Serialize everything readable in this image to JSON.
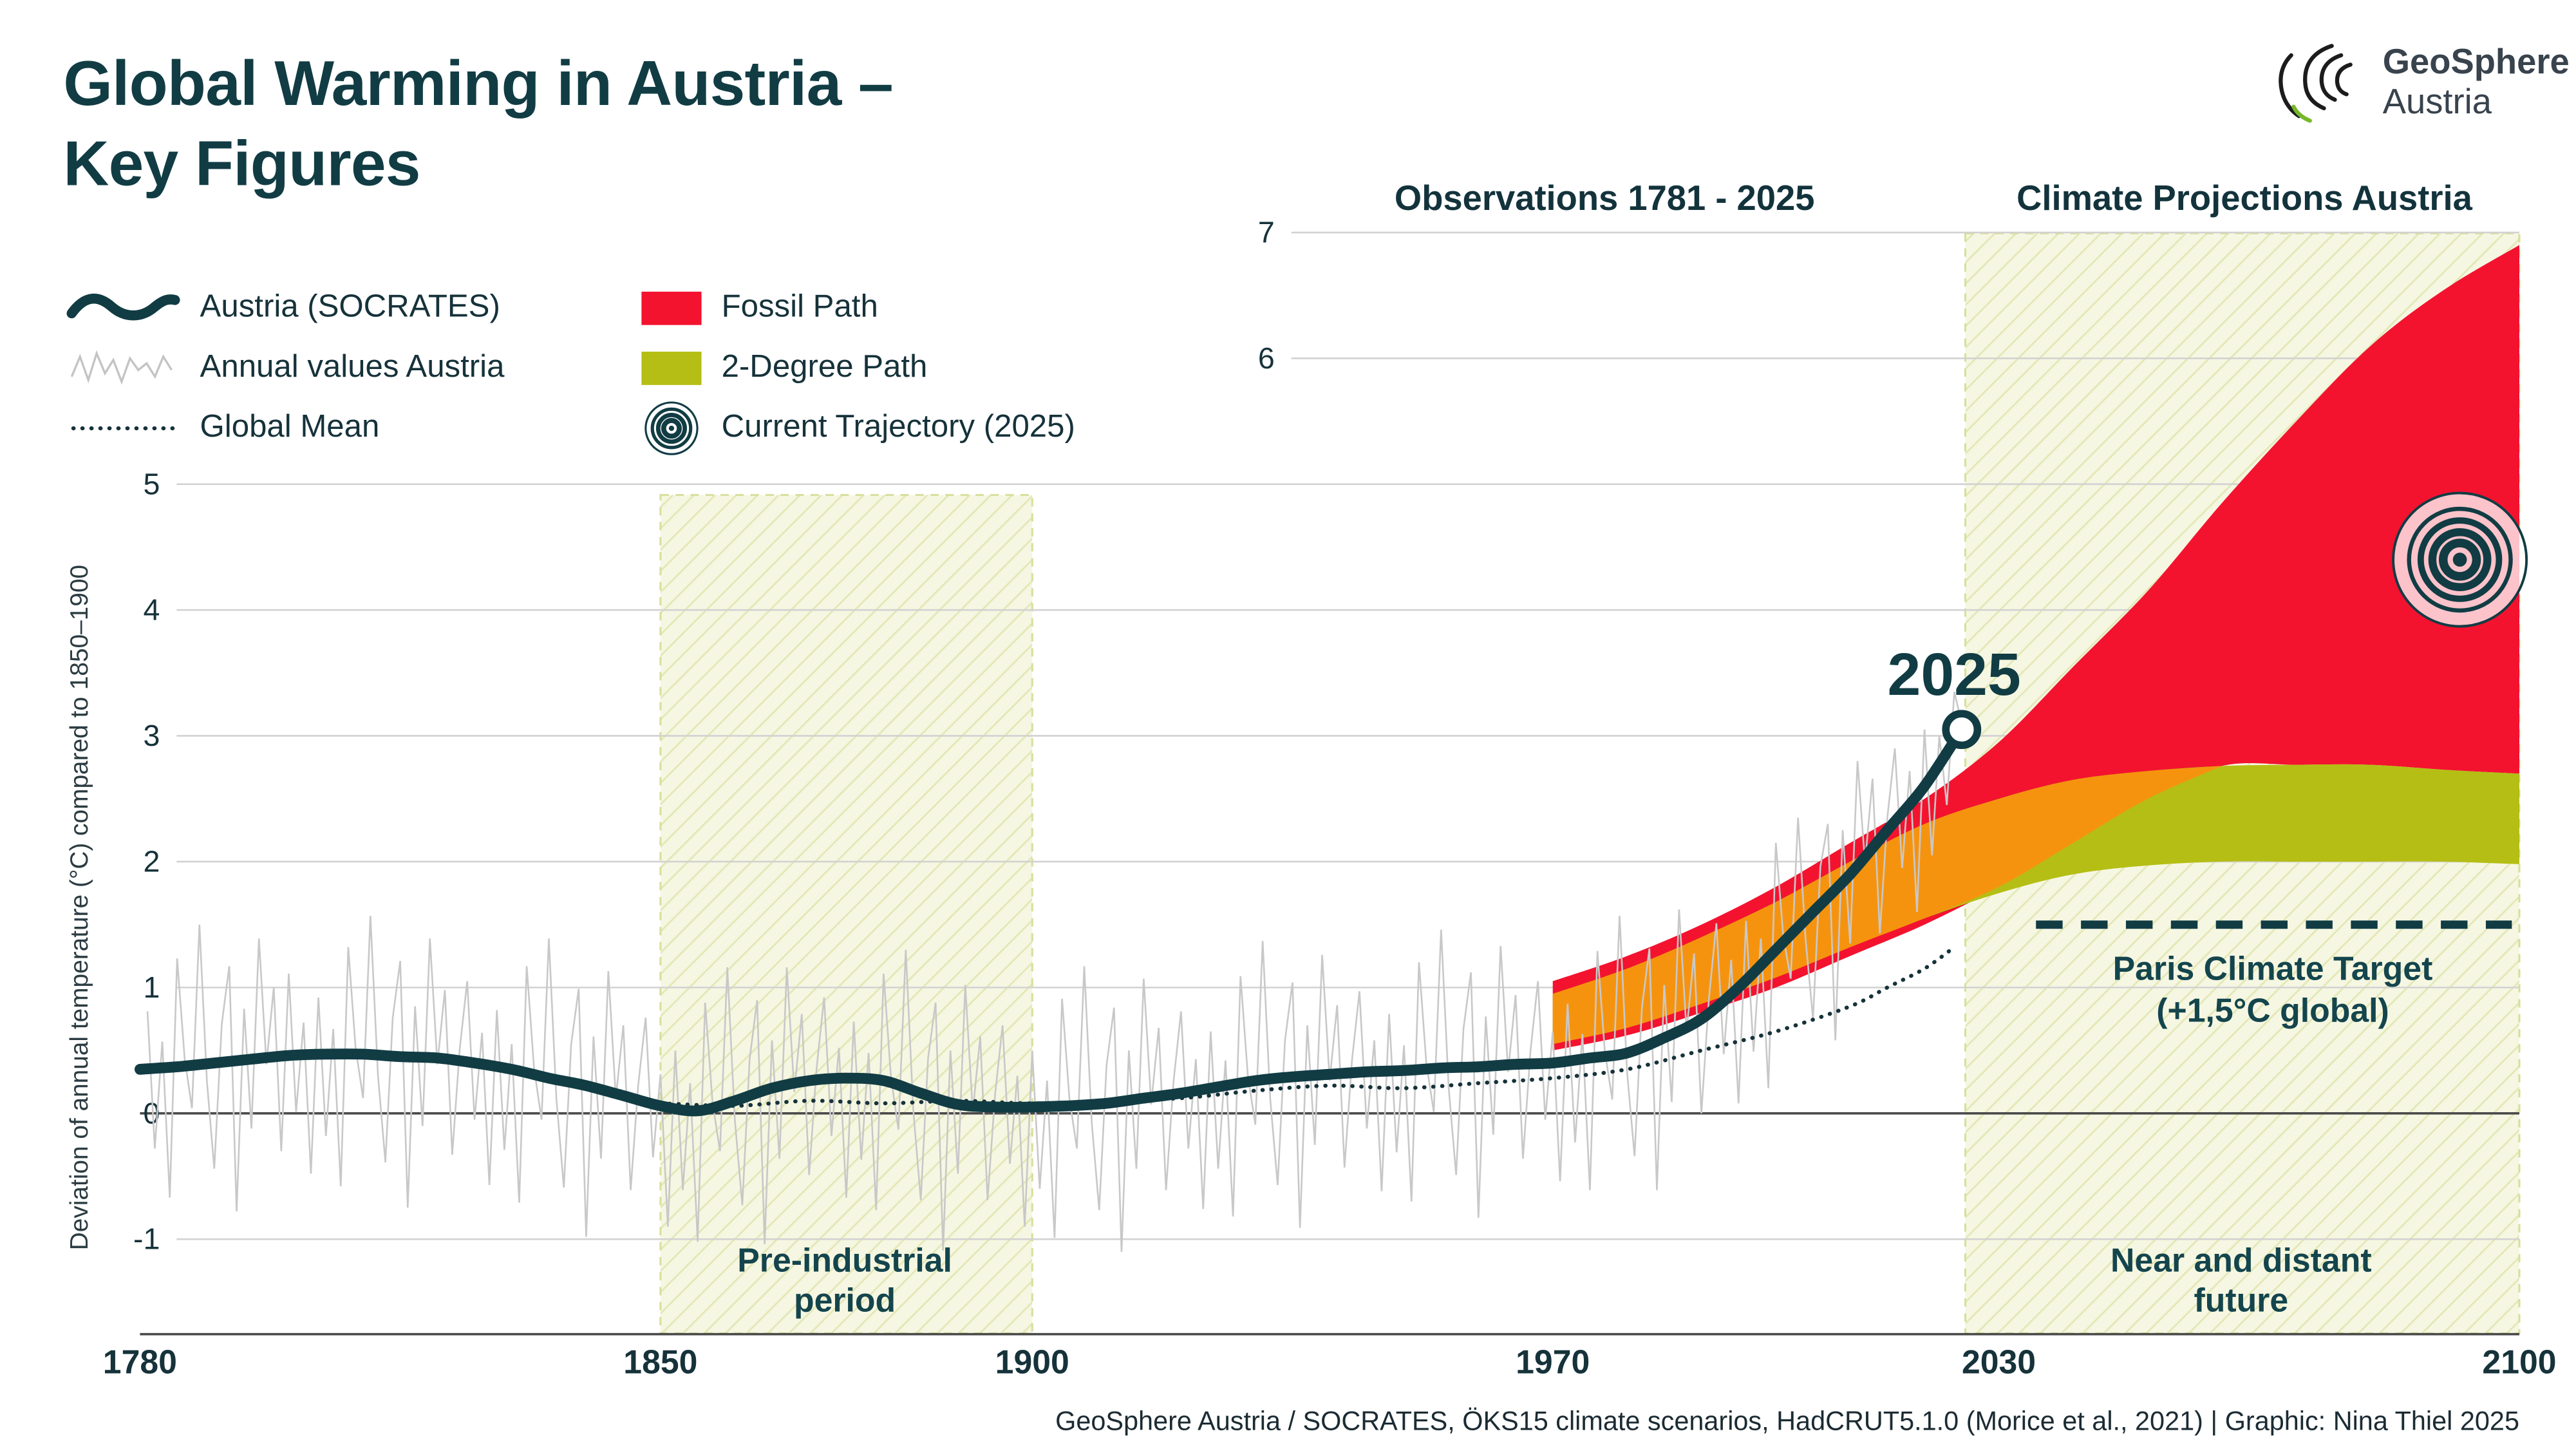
{
  "title": {
    "line1": "Global Warming in Austria –",
    "line2": "Key Figures"
  },
  "logo": {
    "name": "GeoSphere",
    "region": "Austria"
  },
  "legend": {
    "items": [
      {
        "id": "socrates",
        "label": "Austria (SOCRATES)"
      },
      {
        "id": "annual",
        "label": "Annual values Austria"
      },
      {
        "id": "global-mean",
        "label": "Global Mean"
      },
      {
        "id": "fossil",
        "label": "Fossil Path"
      },
      {
        "id": "two-degree",
        "label": "2-Degree Path"
      },
      {
        "id": "trajectory",
        "label": "Current Trajectory (2025)"
      }
    ]
  },
  "sections": {
    "observations": "Observations 1781 - 2025",
    "projections": "Climate Projections Austria"
  },
  "annotations": {
    "year_label": "2025",
    "paris_line1": "Paris Climate Target",
    "paris_line2": "(+1,5°C global)",
    "preindustrial_line1": "Pre-industrial",
    "preindustrial_line2": "period",
    "future_line1": "Near and distant",
    "future_line2": "future"
  },
  "footer": "GeoSphere Austria / SOCRATES, ÖKS15 climate scenarios, HadCRUT5.1.0 (Morice et al., 2021) | Graphic: Nina Thiel 2025",
  "colors": {
    "teal": "#113c44",
    "text": "#16323a",
    "red": "#f3132f",
    "olive": "#b5be14",
    "orange": "#f6930e",
    "grid": "#d2d2d2",
    "axis": "#4a4a4a",
    "annual": "#c8c8c8",
    "hatch_bg": "#f6f7e2",
    "hatch_line": "#e3e8b6",
    "band_edge": "#d8df9b",
    "logo_green": "#76b82a",
    "logo_ink": "#1c1c1c"
  },
  "chart_data": {
    "type": "line",
    "title": "Global Warming in Austria – Key Figures",
    "ylabel": "Deviation of annual temperature (°C) compared to 1850–1900",
    "xlim": [
      1780,
      2100
    ],
    "ylim": [
      -1.75,
      7
    ],
    "x_ticks": [
      1780,
      1850,
      1900,
      1970,
      2030,
      2100
    ],
    "y_ticks": [
      -1,
      0,
      1,
      2,
      3,
      4,
      5,
      6,
      7
    ],
    "grid": true,
    "regions": {
      "preindustrial": {
        "from": 1850,
        "to": 1900
      },
      "future": {
        "from": 2025.5,
        "to": 2100
      }
    },
    "series": {
      "socrates": {
        "name": "Austria (SOCRATES)",
        "years": [
          1780,
          1785,
          1790,
          1795,
          1800,
          1805,
          1810,
          1815,
          1820,
          1825,
          1830,
          1835,
          1840,
          1845,
          1850,
          1855,
          1860,
          1865,
          1870,
          1875,
          1880,
          1885,
          1890,
          1895,
          1900,
          1905,
          1910,
          1915,
          1920,
          1925,
          1930,
          1935,
          1940,
          1945,
          1950,
          1955,
          1960,
          1965,
          1970,
          1975,
          1980,
          1985,
          1990,
          1995,
          2000,
          2005,
          2010,
          2015,
          2020,
          2025
        ],
        "values": [
          0.35,
          0.37,
          0.4,
          0.43,
          0.46,
          0.47,
          0.47,
          0.45,
          0.44,
          0.4,
          0.35,
          0.28,
          0.22,
          0.14,
          0.06,
          0.02,
          0.1,
          0.2,
          0.26,
          0.28,
          0.26,
          0.16,
          0.07,
          0.05,
          0.05,
          0.06,
          0.08,
          0.12,
          0.16,
          0.21,
          0.26,
          0.29,
          0.31,
          0.33,
          0.34,
          0.36,
          0.37,
          0.39,
          0.4,
          0.44,
          0.48,
          0.6,
          0.75,
          1.0,
          1.3,
          1.6,
          1.9,
          2.25,
          2.6,
          3.05
        ]
      },
      "annual": {
        "name": "Annual values Austria",
        "start_year": 1781,
        "values": [
          0.81,
          -0.28,
          0.57,
          -0.67,
          1.23,
          0.44,
          0.04,
          1.5,
          0.25,
          -0.44,
          0.71,
          1.17,
          -0.78,
          0.83,
          -0.12,
          1.39,
          0.39,
          1.0,
          -0.3,
          1.11,
          0.01,
          0.72,
          -0.48,
          0.92,
          -0.18,
          0.67,
          -0.58,
          1.32,
          0.52,
          0.12,
          1.57,
          0.31,
          -0.39,
          0.76,
          1.21,
          -0.75,
          0.85,
          -0.1,
          1.39,
          0.39,
          0.98,
          -0.33,
          0.51,
          1.05,
          -0.05,
          0.64,
          -0.57,
          0.82,
          -0.29,
          0.55,
          -0.71,
          1.17,
          0.36,
          -0.05,
          1.39,
          0.12,
          -0.59,
          0.55,
          0.99,
          -0.98,
          0.61,
          -0.36,
          1.13,
          0.12,
          0.7,
          -0.61,
          0.22,
          0.76,
          -0.35,
          0.31,
          -0.9,
          0.5,
          -0.61,
          0.24,
          -1.02,
          0.88,
          0.09,
          -0.3,
          1.16,
          -0.05,
          -0.73,
          0.43,
          0.9,
          -1.04,
          0.58,
          -0.36,
          1.16,
          0.17,
          0.79,
          -0.49,
          0.36,
          0.92,
          -0.18,
          0.52,
          -0.67,
          0.73,
          -0.37,
          0.48,
          -0.77,
          1.11,
          0.29,
          -0.13,
          1.3,
          0.03,
          -0.69,
          0.44,
          0.88,
          -1.09,
          0.5,
          -0.48,
          1.02,
          0.01,
          0.61,
          -0.69,
          0.15,
          0.7,
          -0.4,
          0.3,
          -0.9,
          0.5,
          -0.6,
          0.26,
          -0.99,
          0.91,
          0.12,
          -0.28,
          1.17,
          -0.07,
          -0.77,
          0.38,
          0.84,
          -1.1,
          0.5,
          -0.44,
          1.07,
          0.07,
          0.68,
          -0.61,
          0.25,
          0.81,
          -0.28,
          0.43,
          -0.76,
          0.65,
          -0.44,
          0.42,
          -0.82,
          1.09,
          0.3,
          -0.09,
          1.37,
          0.12,
          -0.57,
          0.58,
          1.04,
          -0.91,
          0.7,
          -0.25,
          1.26,
          0.26,
          0.86,
          -0.43,
          0.42,
          0.97,
          -0.12,
          0.58,
          -0.62,
          0.79,
          -0.31,
          0.54,
          -0.7,
          1.2,
          0.4,
          0.01,
          1.46,
          0.21,
          -0.49,
          0.67,
          1.12,
          -0.83,
          0.77,
          -0.17,
          1.33,
          0.33,
          0.94,
          -0.36,
          0.49,
          1.05,
          -0.05,
          0.65,
          -0.54,
          0.87,
          -0.23,
          0.63,
          -0.61,
          1.29,
          0.5,
          0.11,
          1.57,
          0.33,
          -0.34,
          0.84,
          1.31,
          -0.61,
          1.02,
          0.09,
          1.62,
          0.65,
          1.27,
          0.0,
          0.91,
          1.51,
          0.47,
          1.22,
          0.08,
          1.53,
          0.49,
          1.39,
          0.2,
          2.15,
          1.41,
          1.07,
          2.35,
          1.39,
          0.75,
          1.96,
          2.3,
          0.58,
          2.25,
          1.35,
          2.8,
          1.99,
          2.66,
          1.43,
          2.35,
          2.9,
          1.95,
          2.72,
          1.6,
          3.05,
          2.05,
          3.0,
          2.45,
          3.35,
          3.1
        ]
      },
      "global_mean": {
        "name": "Global Mean",
        "years": [
          1850,
          1860,
          1870,
          1880,
          1890,
          1900,
          1910,
          1920,
          1930,
          1940,
          1950,
          1960,
          1970,
          1980,
          1990,
          2000,
          2010,
          2015,
          2020,
          2024
        ],
        "values": [
          0.08,
          0.06,
          0.1,
          0.08,
          0.1,
          0.08,
          0.1,
          0.12,
          0.18,
          0.22,
          0.2,
          0.24,
          0.28,
          0.35,
          0.5,
          0.65,
          0.85,
          1.0,
          1.15,
          1.32
        ]
      },
      "fossil": {
        "name": "Fossil Path",
        "years": [
          1970,
          1980,
          1990,
          2000,
          2010,
          2020,
          2030,
          2040,
          2050,
          2060,
          2070,
          2080,
          2090,
          2100
        ],
        "lower": [
          0.5,
          0.62,
          0.8,
          1.0,
          1.25,
          1.5,
          1.8,
          2.15,
          2.5,
          2.76,
          2.77,
          2.77,
          2.73,
          2.7
        ],
        "upper": [
          1.05,
          1.25,
          1.5,
          1.8,
          2.15,
          2.5,
          2.95,
          3.55,
          4.15,
          4.85,
          5.5,
          6.1,
          6.55,
          6.9
        ]
      },
      "two_degree": {
        "name": "2-Degree Path",
        "years": [
          1970,
          1980,
          1990,
          2000,
          2010,
          2020,
          2030,
          2040,
          2050,
          2060,
          2070,
          2080,
          2090,
          2100
        ],
        "lower": [
          0.55,
          0.68,
          0.87,
          1.08,
          1.32,
          1.55,
          1.75,
          1.9,
          1.97,
          2.0,
          2.0,
          2.0,
          2.0,
          1.98
        ],
        "upper": [
          0.95,
          1.15,
          1.4,
          1.68,
          2.0,
          2.3,
          2.5,
          2.65,
          2.72,
          2.76,
          2.77,
          2.77,
          2.73,
          2.7
        ]
      }
    },
    "markers": {
      "endpoint": {
        "year": 2025,
        "value": 3.05,
        "label": "2025"
      },
      "current_trajectory": {
        "year": 2092,
        "value": 4.4
      },
      "paris_target": {
        "value": 1.5,
        "from": 2035,
        "to": 2099
      }
    }
  }
}
